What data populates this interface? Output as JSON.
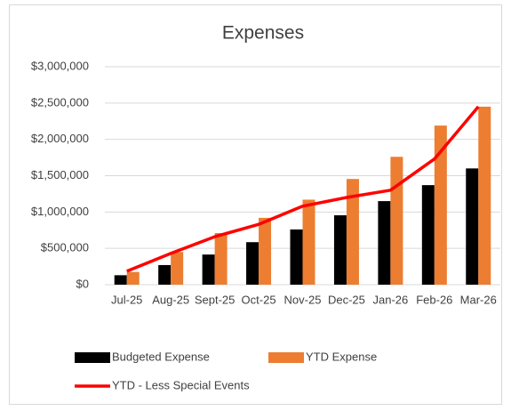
{
  "chart_data": {
    "type": "bar_line",
    "title": "Expenses",
    "categories": [
      "Jul-25",
      "Aug-25",
      "Sept-25",
      "Oct-25",
      "Nov-25",
      "Dec-25",
      "Jan-26",
      "Feb-26",
      "Mar-26"
    ],
    "series": [
      {
        "name": "Budgeted Expense",
        "type": "bar",
        "color": "#000000",
        "values": [
          130000,
          270000,
          415000,
          585000,
          760000,
          955000,
          1150000,
          1370000,
          1600000
        ]
      },
      {
        "name": "YTD Expense",
        "type": "bar",
        "color": "#ed7d31",
        "values": [
          175000,
          450000,
          710000,
          920000,
          1170000,
          1455000,
          1760000,
          2190000,
          2450000
        ]
      },
      {
        "name": "YTD - Less Special Events",
        "type": "line",
        "color": "#ff0000",
        "values": [
          185000,
          430000,
          660000,
          830000,
          1080000,
          1200000,
          1300000,
          1730000,
          2450000
        ]
      }
    ],
    "ylim": [
      0,
      3000000
    ],
    "yticks": [
      {
        "value": 0,
        "label": "$0"
      },
      {
        "value": 500000,
        "label": "$500,000"
      },
      {
        "value": 1000000,
        "label": "$1,000,000"
      },
      {
        "value": 1500000,
        "label": "$1,500,000"
      },
      {
        "value": 2000000,
        "label": "$2,000,000"
      },
      {
        "value": 2500000,
        "label": "$2,500,000"
      },
      {
        "value": 3000000,
        "label": "$3,000,000"
      }
    ],
    "grid": true,
    "legend": "bottom"
  }
}
